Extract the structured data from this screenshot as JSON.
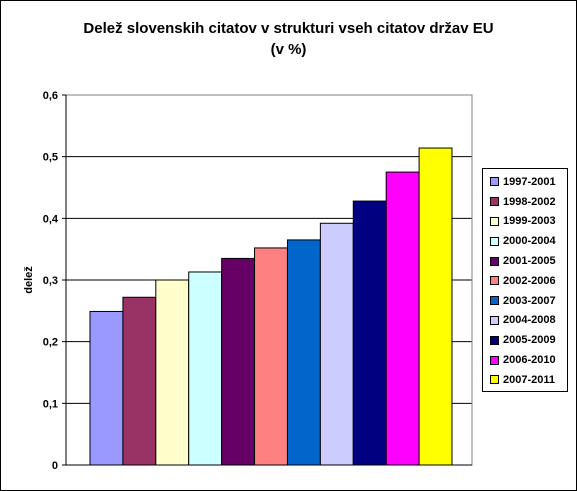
{
  "chart_data": {
    "type": "bar",
    "title_line1": "Delež slovenskih citatov v strukturi vseh citatov držav EU",
    "title_line2": "(v %)",
    "xlabel": "",
    "ylabel": "delež",
    "ylim": [
      0,
      0.6
    ],
    "yticks": [
      "0",
      "0,1",
      "0,2",
      "0,3",
      "0,4",
      "0,5",
      "0,6"
    ],
    "grid": true,
    "legend_position": "right",
    "series": [
      {
        "name": "1997-2001",
        "value": 0.249,
        "color": "#9999FF"
      },
      {
        "name": "1998-2002",
        "value": 0.272,
        "color": "#993366"
      },
      {
        "name": "1999-2003",
        "value": 0.3,
        "color": "#FFFFCC"
      },
      {
        "name": "2000-2004",
        "value": 0.313,
        "color": "#CCFFFF"
      },
      {
        "name": "2001-2005",
        "value": 0.335,
        "color": "#660066"
      },
      {
        "name": "2002-2006",
        "value": 0.352,
        "color": "#FF8080"
      },
      {
        "name": "2003-2007",
        "value": 0.365,
        "color": "#0066CC"
      },
      {
        "name": "2004-2008",
        "value": 0.392,
        "color": "#CCCCFF"
      },
      {
        "name": "2005-2009",
        "value": 0.428,
        "color": "#000080"
      },
      {
        "name": "2006-2010",
        "value": 0.475,
        "color": "#FF00FF"
      },
      {
        "name": "2007-2011",
        "value": 0.514,
        "color": "#FFFF00"
      }
    ]
  }
}
